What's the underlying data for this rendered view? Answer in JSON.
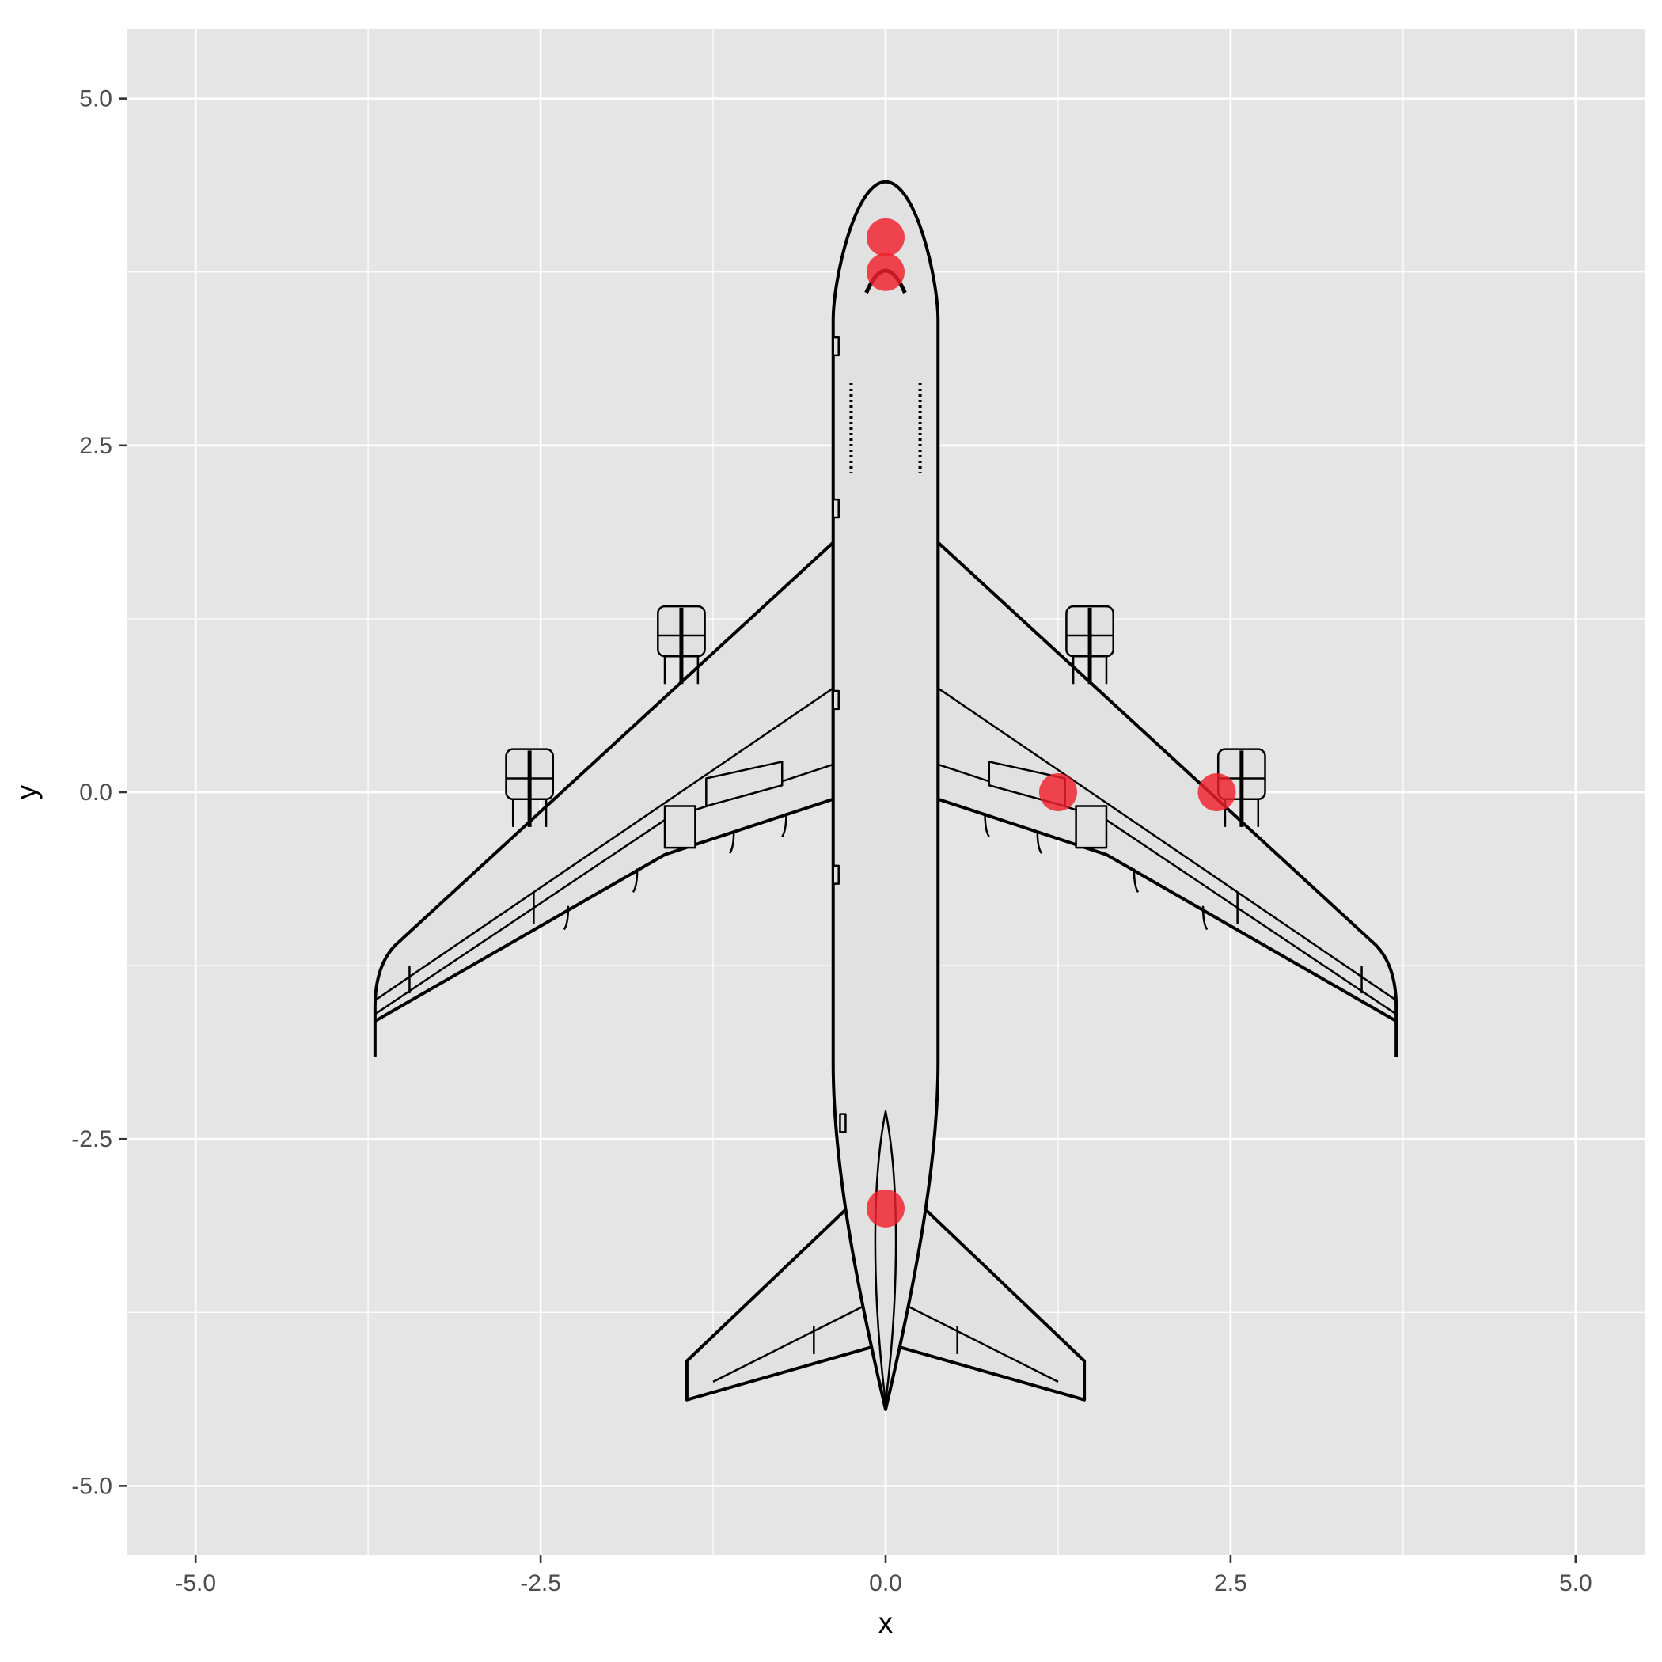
{
  "chart_data": {
    "type": "scatter",
    "title": "",
    "xlabel": "x",
    "ylabel": "y",
    "xlim": [
      -5.5,
      5.5
    ],
    "ylim": [
      -5.5,
      5.5
    ],
    "x_ticks": [
      -5.0,
      -2.5,
      0.0,
      2.5,
      5.0
    ],
    "y_ticks": [
      -5.0,
      -2.5,
      0.0,
      2.5,
      5.0
    ],
    "x_tick_labels": [
      "-5.0",
      "-2.5",
      "0.0",
      "2.5",
      "5.0"
    ],
    "y_tick_labels": [
      "-5.0",
      "-2.5",
      "0.0",
      "2.5",
      "5.0"
    ],
    "grid": true,
    "legend": "none",
    "background_image": "airplane-top-view",
    "panel_color": "#e5e5e5",
    "gridline_color": "#ffffff",
    "point_color": "#f0202b",
    "series": [
      {
        "points": [
          {
            "x": 0.0,
            "y": 4.0
          },
          {
            "x": 0.0,
            "y": 3.75
          },
          {
            "x": 1.25,
            "y": 0.0
          },
          {
            "x": 2.4,
            "y": 0.0
          },
          {
            "x": 0.0,
            "y": -3.0
          }
        ]
      }
    ]
  }
}
